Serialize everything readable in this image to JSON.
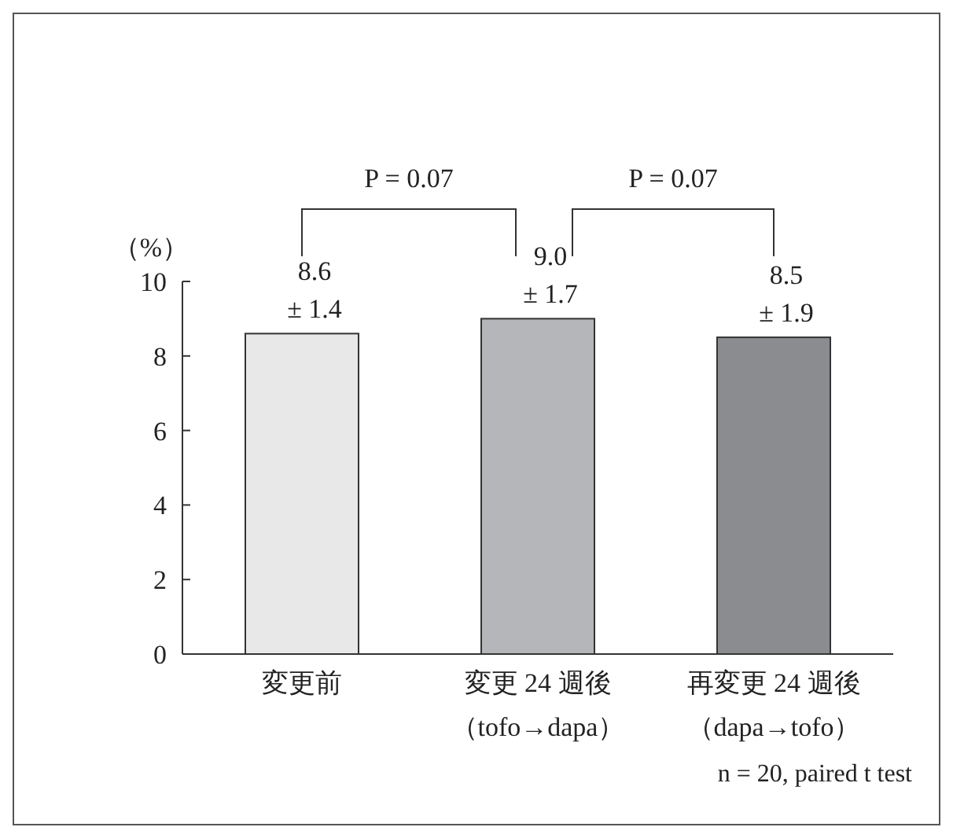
{
  "chart_data": {
    "type": "bar",
    "ylabel": "（%）",
    "categories": [
      "変更前",
      "変更 24 週後（tofo→dapa）",
      "再変更 24 週後（dapa→tofo）"
    ],
    "values": [
      8.6,
      9.0,
      8.5
    ],
    "colors": [
      "#e8e8e9",
      "#b5b6b9",
      "#8b8c8f"
    ],
    "value_labels": [
      "8.6\n± 1.4",
      "9.0\n± 1.7",
      "8.5\n± 1.9"
    ],
    "ylim": [
      0,
      10
    ],
    "yticks": [
      0,
      2,
      4,
      6,
      8,
      10
    ],
    "grid": false,
    "annotations": [
      "P = 0.07",
      "P = 0.07",
      "n = 20,  paired t test"
    ]
  }
}
